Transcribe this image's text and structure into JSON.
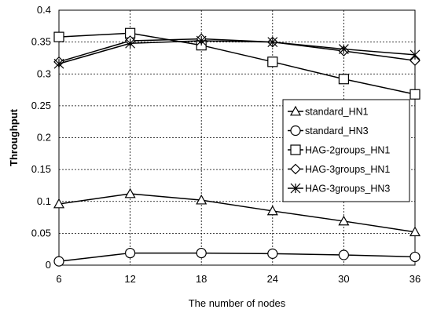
{
  "chart_data": {
    "type": "line",
    "xlabel": "The number of nodes",
    "ylabel": "Throughput",
    "x": [
      6,
      12,
      18,
      24,
      30,
      36
    ],
    "xlim": [
      6,
      36
    ],
    "ylim": [
      0,
      0.4
    ],
    "yticks": [
      0,
      0.05,
      0.1,
      0.15,
      0.2,
      0.25,
      0.3,
      0.35,
      0.4
    ],
    "ytick_labels": [
      "0",
      "0.05",
      "0.1",
      "0.15",
      "0.2",
      "0.25",
      "0.3",
      "0.35",
      "0.4"
    ],
    "xtick_labels": [
      "6",
      "12",
      "18",
      "24",
      "30",
      "36"
    ],
    "grid": true,
    "legend_position": "right",
    "series": [
      {
        "name": "standard_HN1",
        "marker": "triangle",
        "values": [
          0.096,
          0.112,
          0.102,
          0.085,
          0.069,
          0.052
        ]
      },
      {
        "name": "standard_HN3",
        "marker": "circle",
        "values": [
          0.006,
          0.019,
          0.019,
          0.018,
          0.016,
          0.013
        ]
      },
      {
        "name": "HAG-2groups_HN1",
        "marker": "square",
        "values": [
          0.358,
          0.364,
          0.345,
          0.319,
          0.292,
          0.268
        ]
      },
      {
        "name": "HAG-3groups_HN1",
        "marker": "diamond",
        "values": [
          0.319,
          0.352,
          0.355,
          0.35,
          0.336,
          0.321
        ]
      },
      {
        "name": "HAG-3groups_HN3",
        "marker": "asterisk",
        "values": [
          0.316,
          0.348,
          0.352,
          0.35,
          0.339,
          0.33
        ]
      }
    ]
  }
}
